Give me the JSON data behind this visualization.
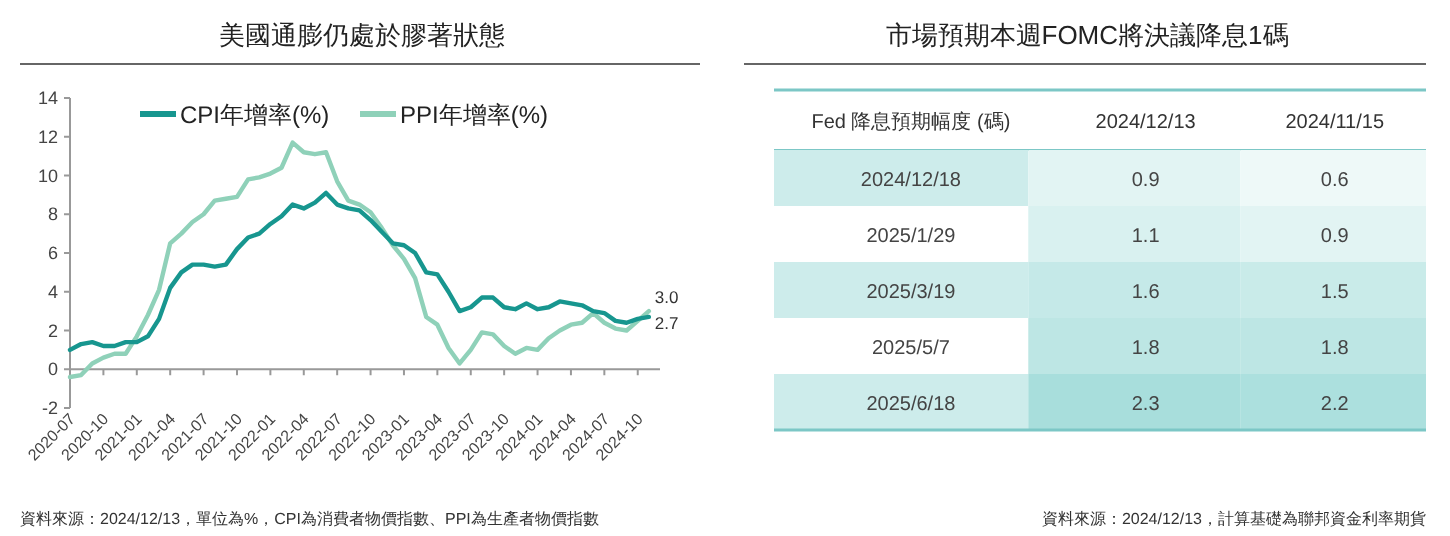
{
  "chart_data": [
    {
      "type": "line",
      "title": "美國通膨仍處於膠著狀態",
      "x": [
        "2020-07",
        "2020-08",
        "2020-09",
        "2020-10",
        "2020-11",
        "2020-12",
        "2021-01",
        "2021-02",
        "2021-03",
        "2021-04",
        "2021-05",
        "2021-06",
        "2021-07",
        "2021-08",
        "2021-09",
        "2021-10",
        "2021-11",
        "2021-12",
        "2022-01",
        "2022-02",
        "2022-03",
        "2022-04",
        "2022-05",
        "2022-06",
        "2022-07",
        "2022-08",
        "2022-09",
        "2022-10",
        "2022-11",
        "2022-12",
        "2023-01",
        "2023-02",
        "2023-03",
        "2023-04",
        "2023-05",
        "2023-06",
        "2023-07",
        "2023-08",
        "2023-09",
        "2023-10",
        "2023-11",
        "2023-12",
        "2024-01",
        "2024-02",
        "2024-03",
        "2024-04",
        "2024-05",
        "2024-06",
        "2024-07",
        "2024-08",
        "2024-09",
        "2024-10",
        "2024-11"
      ],
      "series": [
        {
          "name": "CPI年增率(%)",
          "color": "#17968f",
          "values": [
            1.0,
            1.3,
            1.4,
            1.2,
            1.2,
            1.4,
            1.4,
            1.7,
            2.6,
            4.2,
            5.0,
            5.4,
            5.4,
            5.3,
            5.4,
            6.2,
            6.8,
            7.0,
            7.5,
            7.9,
            8.5,
            8.3,
            8.6,
            9.1,
            8.5,
            8.3,
            8.2,
            7.7,
            7.1,
            6.5,
            6.4,
            6.0,
            5.0,
            4.9,
            4.0,
            3.0,
            3.2,
            3.7,
            3.7,
            3.2,
            3.1,
            3.4,
            3.1,
            3.2,
            3.5,
            3.4,
            3.3,
            3.0,
            2.9,
            2.5,
            2.4,
            2.6,
            2.7
          ]
        },
        {
          "name": "PPI年增率(%)",
          "color": "#8fd1b9",
          "values": [
            -0.4,
            -0.3,
            0.3,
            0.6,
            0.8,
            0.8,
            1.7,
            2.8,
            4.1,
            6.5,
            7.0,
            7.6,
            8.0,
            8.7,
            8.8,
            8.9,
            9.8,
            9.9,
            10.1,
            10.4,
            11.7,
            11.2,
            11.1,
            11.2,
            9.7,
            8.7,
            8.5,
            8.1,
            7.3,
            6.4,
            5.7,
            4.7,
            2.7,
            2.3,
            1.1,
            0.3,
            1.0,
            1.9,
            1.8,
            1.2,
            0.8,
            1.1,
            1.0,
            1.6,
            2.0,
            2.3,
            2.4,
            2.9,
            2.4,
            2.1,
            2.0,
            2.5,
            3.0
          ]
        }
      ],
      "xlim": [
        "2020-07",
        "2024-12"
      ],
      "xticks": [
        "2020-07",
        "2020-10",
        "2021-01",
        "2021-04",
        "2021-07",
        "2021-10",
        "2022-01",
        "2022-04",
        "2022-07",
        "2022-10",
        "2023-01",
        "2023-04",
        "2023-07",
        "2023-10",
        "2024-01",
        "2024-04",
        "2024-07",
        "2024-10"
      ],
      "ylim": [
        -2,
        14
      ],
      "yticks": [
        -2,
        0,
        2,
        4,
        6,
        8,
        10,
        12,
        14
      ],
      "grid": false,
      "legend": "top",
      "marker": "none",
      "line_style": "solid",
      "annotations": [
        {
          "text": "3.0",
          "x": "2024-11",
          "y": 3.0
        },
        {
          "text": "2.7",
          "x": "2024-11",
          "y": 2.7
        },
        "資料來源：2024/12/13，單位為%，CPI為消費者物價指數、PPI為生產者物價指數"
      ]
    },
    {
      "type": "heatmap",
      "title": "市場預期本週FOMC將決議降息1碼",
      "ylabel": "Fed 降息預期幅度 (碼)",
      "categories": [
        "2024/12/13",
        "2024/11/15"
      ],
      "y_categories": [
        "2024/12/18",
        "2025/1/29",
        "2025/3/19",
        "2025/5/7",
        "2025/6/18"
      ],
      "cells": [
        [
          0.9,
          0.6
        ],
        [
          1.1,
          0.9
        ],
        [
          1.6,
          1.5
        ],
        [
          1.8,
          1.8
        ],
        [
          2.3,
          2.2
        ]
      ],
      "data_labels": true,
      "annotations": [
        "資料來源：2024/12/13，計算基礎為聯邦資金利率期貨"
      ]
    }
  ]
}
